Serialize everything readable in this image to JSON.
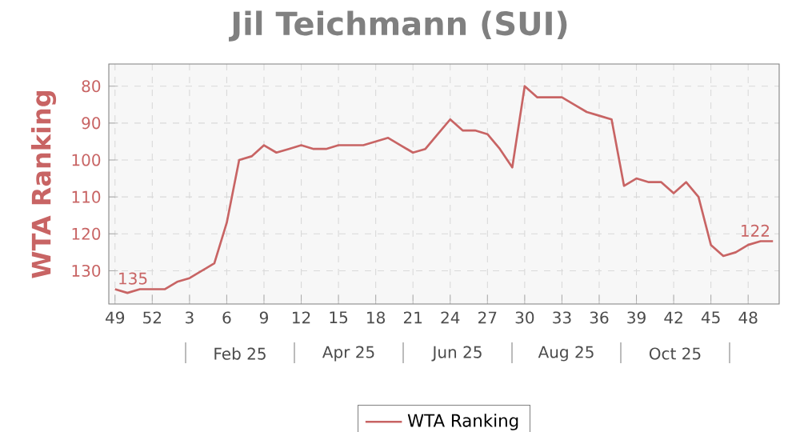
{
  "chart_data": {
    "type": "line",
    "title": "Jil Teichmann (SUI)",
    "ylabel": "WTA Ranking",
    "categories": [
      "49",
      null,
      null,
      "52",
      null,
      null,
      "3",
      null,
      null,
      "6",
      null,
      null,
      "9",
      null,
      null,
      "12",
      null,
      null,
      "15",
      null,
      null,
      "18",
      null,
      null,
      "21",
      null,
      null,
      "24",
      null,
      null,
      "27",
      null,
      null,
      "30",
      null,
      null,
      "33",
      null,
      null,
      "36",
      null,
      null,
      "39",
      null,
      null,
      "42",
      null,
      null,
      "45",
      null,
      null,
      "48",
      null,
      null
    ],
    "series": [
      {
        "name": "WTA Ranking",
        "color": "#c86464",
        "values": [
          135,
          136,
          135,
          135,
          135,
          133,
          132,
          130,
          128,
          117,
          100,
          99,
          96,
          98,
          97,
          96,
          97,
          97,
          96,
          96,
          96,
          95,
          94,
          96,
          98,
          97,
          93,
          89,
          92,
          92,
          93,
          97,
          102,
          80,
          83,
          83,
          83,
          85,
          87,
          88,
          89,
          107,
          105,
          106,
          106,
          109,
          106,
          110,
          123,
          126,
          125,
          123,
          122,
          122
        ]
      }
    ],
    "ylim": [
      139,
      74
    ],
    "yticks": [
      80,
      90,
      100,
      110,
      120,
      130
    ],
    "grid": true,
    "legend": "bottom",
    "marker": "none",
    "line_style": "solid",
    "annotations": [
      {
        "text": "135",
        "x": "49",
        "y": 135
      },
      {
        "text": "122",
        "y": 122
      },
      "Feb 25",
      "Apr 25",
      "Jun 25",
      "Aug 25",
      "Oct 25"
    ]
  }
}
